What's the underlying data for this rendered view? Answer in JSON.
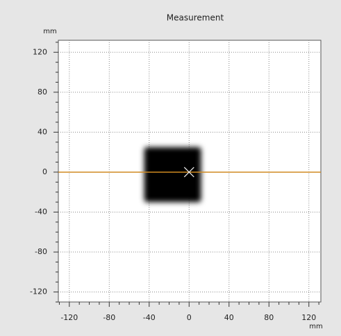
{
  "chart_data": {
    "type": "image",
    "title": "Measurement",
    "x_unit": "mm",
    "y_unit": "mm",
    "xlim": [
      -131,
      132
    ],
    "ylim": [
      -130,
      132
    ],
    "xticks": [
      -120,
      -80,
      -40,
      0,
      40,
      80,
      120
    ],
    "yticks": [
      -120,
      -80,
      -40,
      0,
      40,
      80,
      120
    ],
    "xminorticks": [
      -130,
      -110,
      -100,
      -90,
      -70,
      -60,
      -50,
      -30,
      -20,
      -10,
      10,
      20,
      30,
      50,
      60,
      70,
      90,
      100,
      110,
      130
    ],
    "yminorticks": [
      -130,
      -110,
      -100,
      -90,
      -70,
      -60,
      -50,
      -30,
      -20,
      -10,
      10,
      20,
      30,
      50,
      60,
      70,
      90,
      100,
      110,
      130
    ],
    "grid": true,
    "blob": {
      "x": [
        -45,
        12
      ],
      "y": [
        -30,
        25
      ],
      "color": "#000000"
    },
    "marker": {
      "x": 0,
      "y": 0,
      "color": "#f0f0f0"
    },
    "line": {
      "y": 0,
      "color": "#d08a20"
    }
  }
}
